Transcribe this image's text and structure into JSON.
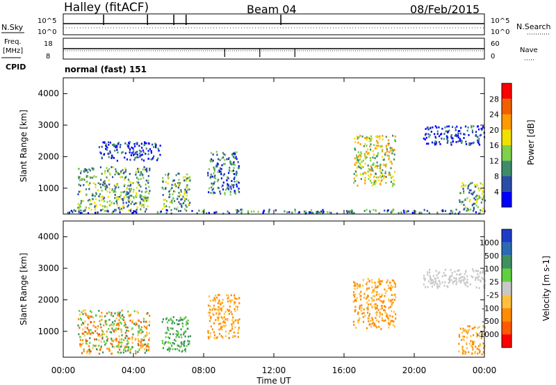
{
  "header": {
    "station": "Halley (fitACF)",
    "beam": "Beam 04",
    "date": "08/Feb/2015"
  },
  "sky_panel": {
    "left_label": "N.Sky",
    "right_label": "N.Search",
    "tick_top": "10^5",
    "tick_bottom": "10^0",
    "right_tick_top": "10^5",
    "right_tick_bottom": "10^0"
  },
  "freq_panel": {
    "left_label_1": "Freq.",
    "left_label_2": "[MHz]",
    "right_label": "Nave",
    "tick_top": "18",
    "tick_bottom": "8",
    "right_tick_top": "60",
    "right_tick_bottom": "0"
  },
  "cpid": {
    "label": "CPID",
    "value": "normal (fast) 151"
  },
  "x_axis": {
    "label": "Time UT",
    "ticks": [
      "00:00",
      "04:00",
      "08:00",
      "12:00",
      "16:00",
      "20:00",
      "00:00"
    ]
  },
  "power_panel": {
    "ylabel": "Slant Range [km]",
    "yticks": [
      "1000",
      "2000",
      "3000",
      "4000"
    ],
    "colorbar_label": "Power [dB]",
    "colorbar_ticks": [
      "4",
      "8",
      "12",
      "16",
      "20",
      "24",
      "28"
    ],
    "colors": [
      "#0000ff",
      "#2a4ea8",
      "#3f8c6a",
      "#7fd04a",
      "#f0e000",
      "#ff9a00",
      "#f06000",
      "#ff0000"
    ]
  },
  "velocity_panel": {
    "ylabel": "Slant Range [km]",
    "yticks": [
      "1000",
      "2000",
      "3000",
      "4000"
    ],
    "colorbar_label": "Velocity [m s-1]",
    "colorbar_ticks": [
      "1000",
      "500",
      "100",
      "25",
      "-25",
      "-100",
      "-500",
      "-1000"
    ],
    "colors": [
      "#1e3cc8",
      "#2a6cb0",
      "#3f9060",
      "#60d040",
      "#c8c8c8",
      "#ffc040",
      "#ff8c00",
      "#ff5a00",
      "#ff0000"
    ]
  },
  "chart_data": {
    "type": "heatmap",
    "x_range_hours": [
      0,
      24
    ],
    "y_range_km": [
      180,
      4500
    ],
    "power_clusters": [
      {
        "t": [
          0.8,
          4.9
        ],
        "r": [
          300,
          1700
        ],
        "level": 3
      },
      {
        "t": [
          5.6,
          7.2
        ],
        "r": [
          350,
          1500
        ],
        "level": 3
      },
      {
        "t": [
          8.2,
          10.0
        ],
        "r": [
          800,
          2200
        ],
        "level": 2
      },
      {
        "t": [
          2.0,
          5.5
        ],
        "r": [
          1900,
          2500
        ],
        "level": 1
      },
      {
        "t": [
          16.5,
          18.9
        ],
        "r": [
          1100,
          2700
        ],
        "level": 4
      },
      {
        "t": [
          20.5,
          24.0
        ],
        "r": [
          2400,
          3000
        ],
        "level": 1
      },
      {
        "t": [
          22.5,
          24.0
        ],
        "r": [
          300,
          1200
        ],
        "level": 3
      },
      {
        "t": [
          0.0,
          24.0
        ],
        "r": [
          180,
          350
        ],
        "level": 2
      }
    ],
    "velocity_clusters": [
      {
        "t": [
          0.8,
          4.9
        ],
        "r": [
          300,
          1700
        ],
        "v": "mixed"
      },
      {
        "t": [
          5.6,
          7.2
        ],
        "r": [
          350,
          1500
        ],
        "v": "positive"
      },
      {
        "t": [
          8.2,
          10.0
        ],
        "r": [
          800,
          2200
        ],
        "v": "negative"
      },
      {
        "t": [
          16.5,
          18.9
        ],
        "r": [
          1100,
          2700
        ],
        "v": "negative"
      },
      {
        "t": [
          20.5,
          24.0
        ],
        "r": [
          2400,
          3000
        ],
        "v": "near-zero"
      },
      {
        "t": [
          22.5,
          24.0
        ],
        "r": [
          300,
          1200
        ],
        "v": "negative"
      }
    ]
  }
}
